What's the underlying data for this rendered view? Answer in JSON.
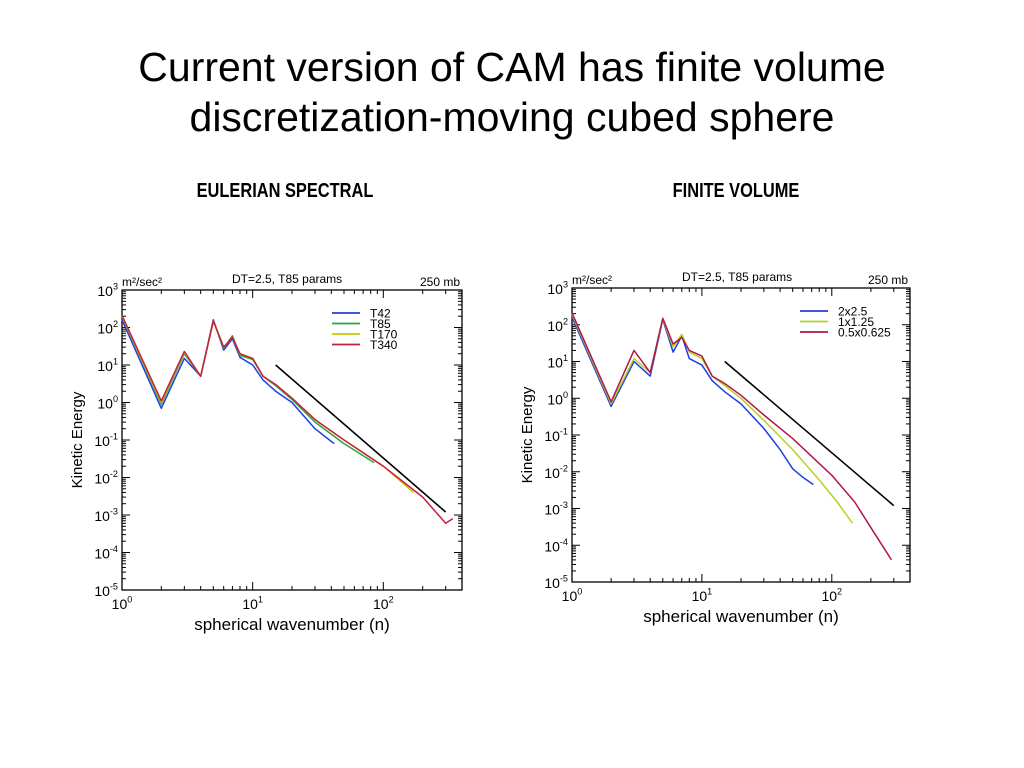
{
  "slide": {
    "title_line1": "Current version of CAM has finite volume",
    "title_line2": "discretization-moving cubed sphere"
  },
  "chart_data": [
    {
      "type": "line",
      "heading": "EULERIAN SPECTRAL",
      "title": "DT=2.5, T85 params",
      "level_label": "250 mb",
      "unit_label": "m²/sec²",
      "xlabel": "spherical wavenumber (n)",
      "ylabel": "Kinetic Energy",
      "x_scale": "log",
      "y_scale": "log",
      "xlim": [
        1,
        400
      ],
      "ylim": [
        1e-05,
        1000
      ],
      "x_ticks": [
        {
          "base": "10",
          "exp": "0",
          "value": 1
        },
        {
          "base": "10",
          "exp": "1",
          "value": 10
        },
        {
          "base": "10",
          "exp": "2",
          "value": 100
        }
      ],
      "y_ticks": [
        {
          "base": "10",
          "exp": "3",
          "value": 1000
        },
        {
          "base": "10",
          "exp": "2",
          "value": 100
        },
        {
          "base": "10",
          "exp": "1",
          "value": 10
        },
        {
          "base": "10",
          "exp": "0",
          "value": 1
        },
        {
          "base": "10",
          "exp": "-1",
          "value": 0.1
        },
        {
          "base": "10",
          "exp": "-2",
          "value": 0.01
        },
        {
          "base": "10",
          "exp": "-3",
          "value": 0.001
        },
        {
          "base": "10",
          "exp": "-4",
          "value": 0.0001
        },
        {
          "base": "10",
          "exp": "-5",
          "value": 1e-05
        }
      ],
      "legend_position": "top-right",
      "series": [
        {
          "name": "T42",
          "color": "#1f3fe0",
          "x": [
            1,
            2,
            3,
            4,
            5,
            6,
            7,
            8,
            10,
            12,
            15,
            20,
            30,
            42
          ],
          "y": [
            160,
            0.7,
            15,
            5,
            160,
            25,
            50,
            16,
            10,
            4,
            2,
            1,
            0.2,
            0.08
          ]
        },
        {
          "name": "T85",
          "color": "#22aa44",
          "x": [
            1,
            2,
            3,
            4,
            5,
            6,
            7,
            8,
            10,
            12,
            15,
            20,
            30,
            50,
            85
          ],
          "y": [
            200,
            0.9,
            20,
            5,
            150,
            28,
            60,
            18,
            14,
            5,
            2.8,
            1.2,
            0.3,
            0.08,
            0.025
          ]
        },
        {
          "name": "T170",
          "color": "#c8c800",
          "x": [
            1,
            2,
            3,
            4,
            5,
            6,
            7,
            8,
            10,
            12,
            15,
            20,
            30,
            50,
            100,
            170
          ],
          "y": [
            200,
            1,
            22,
            5,
            145,
            30,
            55,
            20,
            15,
            5,
            3,
            1.3,
            0.35,
            0.1,
            0.02,
            0.004
          ]
        },
        {
          "name": "T340",
          "color": "#c8203a",
          "x": [
            1,
            2,
            3,
            4,
            5,
            6,
            7,
            8,
            10,
            12,
            15,
            20,
            30,
            50,
            100,
            200,
            300,
            340
          ],
          "y": [
            210,
            1.1,
            23,
            5,
            150,
            30,
            55,
            20,
            15,
            5,
            3,
            1.3,
            0.35,
            0.1,
            0.02,
            0.003,
            0.0006,
            0.0008
          ]
        }
      ],
      "reference_line": {
        "color": "#000000",
        "x": [
          15,
          300
        ],
        "y": [
          10,
          0.0012
        ]
      }
    },
    {
      "type": "line",
      "heading": "FINITE VOLUME",
      "title": "DT=2.5, T85 params",
      "level_label": "250 mb",
      "unit_label": "m²/sec²",
      "xlabel": "spherical wavenumber (n)",
      "ylabel": "Kinetic Energy",
      "x_scale": "log",
      "y_scale": "log",
      "xlim": [
        1,
        400
      ],
      "ylim": [
        1e-05,
        1000
      ],
      "x_ticks": [
        {
          "base": "10",
          "exp": "0",
          "value": 1
        },
        {
          "base": "10",
          "exp": "1",
          "value": 10
        },
        {
          "base": "10",
          "exp": "2",
          "value": 100
        }
      ],
      "y_ticks": [
        {
          "base": "10",
          "exp": "3",
          "value": 1000
        },
        {
          "base": "10",
          "exp": "2",
          "value": 100
        },
        {
          "base": "10",
          "exp": "1",
          "value": 10
        },
        {
          "base": "10",
          "exp": "0",
          "value": 1
        },
        {
          "base": "10",
          "exp": "-1",
          "value": 0.1
        },
        {
          "base": "10",
          "exp": "-2",
          "value": 0.01
        },
        {
          "base": "10",
          "exp": "-3",
          "value": 0.001
        },
        {
          "base": "10",
          "exp": "-4",
          "value": 0.0001
        },
        {
          "base": "10",
          "exp": "-5",
          "value": 1e-05
        }
      ],
      "legend_position": "top-right",
      "series": [
        {
          "name": "2x2.5",
          "color": "#1f3fe0",
          "x": [
            1,
            2,
            3,
            4,
            5,
            6,
            7,
            8,
            10,
            12,
            15,
            20,
            30,
            40,
            50,
            60,
            72
          ],
          "y": [
            160,
            0.6,
            10,
            4,
            140,
            18,
            50,
            12,
            8,
            3,
            1.5,
            0.7,
            0.15,
            0.04,
            0.012,
            0.007,
            0.0045
          ]
        },
        {
          "name": "1x1.25",
          "color": "#b8d020",
          "x": [
            1,
            2,
            3,
            4,
            5,
            6,
            7,
            8,
            10,
            12,
            15,
            20,
            30,
            50,
            80,
            110,
            144
          ],
          "y": [
            190,
            0.7,
            12,
            5,
            145,
            25,
            55,
            18,
            12,
            4,
            2.2,
            1,
            0.25,
            0.04,
            0.006,
            0.0015,
            0.0004
          ]
        },
        {
          "name": "0.5x0.625",
          "color": "#b0184a",
          "x": [
            1,
            2,
            3,
            4,
            5,
            6,
            7,
            8,
            10,
            12,
            15,
            20,
            30,
            50,
            100,
            150,
            200,
            288
          ],
          "y": [
            210,
            0.8,
            20,
            5,
            150,
            30,
            45,
            20,
            14,
            4,
            2.5,
            1.2,
            0.35,
            0.08,
            0.008,
            0.0015,
            0.0003,
            4e-05
          ]
        }
      ],
      "reference_line": {
        "color": "#000000",
        "x": [
          15,
          300
        ],
        "y": [
          10,
          0.0012
        ]
      }
    }
  ]
}
